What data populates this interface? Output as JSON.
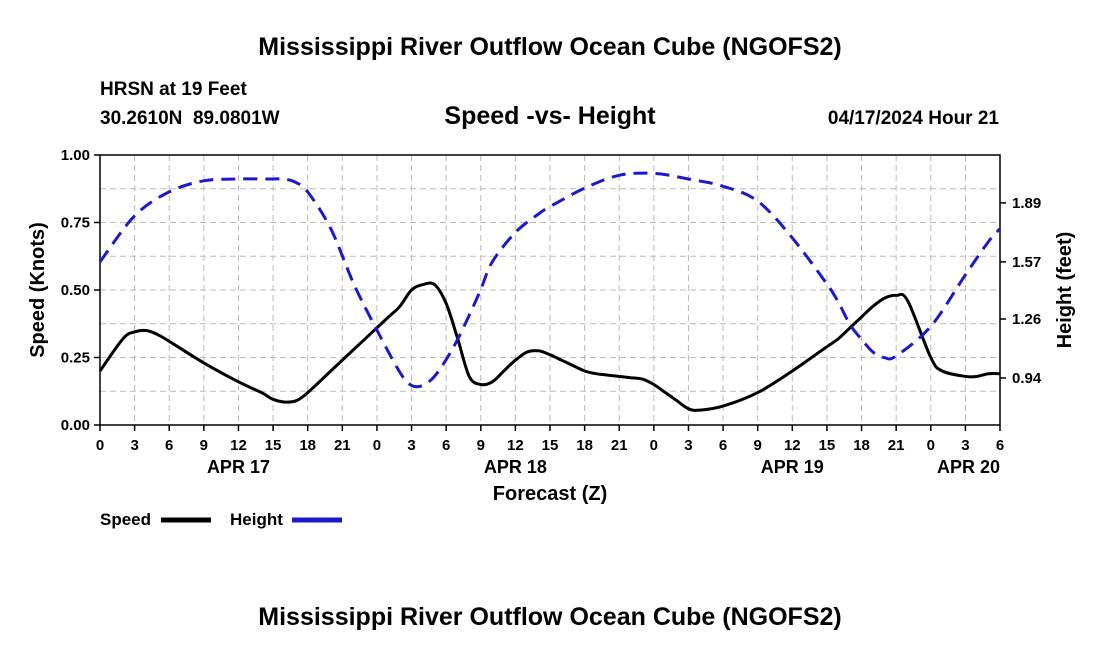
{
  "page": {
    "title": "Mississippi River Outflow Ocean Cube (NGOFS2)",
    "title_repeat": "Mississippi River Outflow Ocean Cube (NGOFS2)"
  },
  "station": {
    "name": "HRSN at 19 Feet",
    "coords": "30.2610N  89.0801W",
    "timestamp": "04/17/2024 Hour 21"
  },
  "legend": {
    "speed_label": "Speed",
    "height_label": "Height"
  },
  "colors": {
    "speed": "#000000",
    "height": "#1a1acc",
    "grid": "#bbbbbb"
  },
  "chart_data": {
    "type": "line",
    "title": "Speed -vs- Height",
    "xlabel": "Forecast (Z)",
    "ylabel": "Speed (Knots)",
    "y2label": "Height (feet)",
    "ylim": [
      0,
      1
    ],
    "y2lim": [
      0.685,
      2.15
    ],
    "x_range_hours": [
      0,
      78
    ],
    "x_ticks": [
      0,
      3,
      6,
      9,
      12,
      15,
      18,
      21,
      24,
      27,
      30,
      33,
      36,
      39,
      42,
      45,
      48,
      51,
      54,
      57,
      60,
      63,
      66,
      69,
      72,
      75,
      78
    ],
    "x_tick_labels": [
      "0",
      "3",
      "6",
      "9",
      "12",
      "15",
      "18",
      "21",
      "0",
      "3",
      "6",
      "9",
      "12",
      "15",
      "18",
      "21",
      "0",
      "3",
      "6",
      "9",
      "12",
      "15",
      "18",
      "21",
      "0",
      "3",
      "6"
    ],
    "y_ticks": [
      0,
      0.25,
      0.5,
      0.75,
      1.0
    ],
    "y_tick_labels": [
      "0.00",
      "0.25",
      "0.50",
      "0.75",
      "1.00"
    ],
    "y2_ticks": [
      0.94,
      1.26,
      1.57,
      1.89
    ],
    "y2_tick_labels": [
      "0.94",
      "1.26",
      "1.57",
      "1.89"
    ],
    "dates": [
      {
        "label": "APR 17",
        "hour": 12
      },
      {
        "label": "APR 18",
        "hour": 36
      },
      {
        "label": "APR 19",
        "hour": 60
      },
      {
        "label": "APR 20",
        "hour": 78
      }
    ],
    "grid": true,
    "series": [
      {
        "name": "Speed",
        "axis": "left",
        "style": "solid",
        "x": [
          0,
          2,
          3,
          4,
          5,
          6,
          9,
          12,
          14,
          15,
          16,
          17,
          18,
          20,
          22,
          24,
          25,
          26,
          27,
          28,
          29,
          30,
          31,
          32,
          33,
          34,
          35,
          36,
          37,
          38,
          39,
          40,
          41,
          42,
          43,
          44,
          45,
          46,
          47,
          48,
          49,
          50,
          51,
          52,
          54,
          57,
          60,
          62,
          63,
          64,
          65,
          66,
          67,
          68,
          69,
          70,
          72,
          73,
          75,
          76,
          77,
          78
        ],
        "y": [
          0.2,
          0.32,
          0.345,
          0.35,
          0.335,
          0.31,
          0.23,
          0.16,
          0.12,
          0.095,
          0.085,
          0.09,
          0.12,
          0.2,
          0.28,
          0.36,
          0.4,
          0.44,
          0.5,
          0.52,
          0.52,
          0.45,
          0.32,
          0.18,
          0.15,
          0.16,
          0.2,
          0.24,
          0.27,
          0.275,
          0.26,
          0.24,
          0.22,
          0.2,
          0.19,
          0.185,
          0.18,
          0.175,
          0.17,
          0.15,
          0.12,
          0.09,
          0.06,
          0.055,
          0.07,
          0.12,
          0.2,
          0.26,
          0.29,
          0.32,
          0.36,
          0.4,
          0.44,
          0.47,
          0.48,
          0.46,
          0.25,
          0.2,
          0.18,
          0.18,
          0.19,
          0.19
        ]
      },
      {
        "name": "Height",
        "axis": "right",
        "style": "dashed",
        "x": [
          0,
          3,
          6,
          9,
          12,
          15,
          16,
          17,
          18,
          20,
          22,
          24,
          26,
          27,
          28,
          29,
          30,
          31,
          32,
          33,
          34,
          36,
          38,
          39,
          42,
          45,
          48,
          51,
          54,
          57,
          60,
          63,
          64,
          65,
          66,
          67,
          68,
          69,
          72,
          75,
          77,
          78
        ],
        "y": [
          1.57,
          1.82,
          1.95,
          2.01,
          2.02,
          2.02,
          2.02,
          2.0,
          1.95,
          1.75,
          1.45,
          1.2,
          0.97,
          0.9,
          0.9,
          0.95,
          1.04,
          1.15,
          1.28,
          1.42,
          1.57,
          1.73,
          1.83,
          1.87,
          1.97,
          2.04,
          2.05,
          2.02,
          1.98,
          1.9,
          1.7,
          1.45,
          1.35,
          1.23,
          1.15,
          1.08,
          1.05,
          1.06,
          1.22,
          1.5,
          1.68,
          1.75
        ]
      }
    ]
  }
}
